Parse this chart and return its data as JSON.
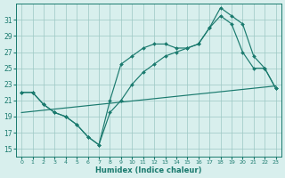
{
  "xlabel": "Humidex (Indice chaleur)",
  "xlim": [
    -0.5,
    23.5
  ],
  "ylim": [
    14,
    33
  ],
  "yticks": [
    15,
    17,
    19,
    21,
    23,
    25,
    27,
    29,
    31
  ],
  "xticks": [
    0,
    1,
    2,
    3,
    4,
    5,
    6,
    7,
    8,
    9,
    10,
    11,
    12,
    13,
    14,
    15,
    16,
    17,
    18,
    19,
    20,
    21,
    22,
    23
  ],
  "line_color": "#1a7a6e",
  "bg_color": "#d8efed",
  "grid_color": "#9cc8c4",
  "series1_x": [
    0,
    1,
    2,
    3,
    4,
    5,
    6,
    7,
    8,
    9,
    10,
    11,
    12,
    13,
    14,
    15,
    16,
    17,
    18,
    19,
    20,
    21,
    22,
    23
  ],
  "series1_y": [
    22.0,
    22.0,
    20.5,
    19.5,
    19.0,
    18.0,
    16.5,
    15.5,
    19.5,
    21.0,
    23.0,
    24.5,
    25.5,
    26.5,
    27.0,
    27.5,
    28.0,
    30.0,
    31.5,
    30.5,
    27.0,
    25.0,
    25.0,
    22.5
  ],
  "series2_x": [
    0,
    1,
    2,
    3,
    4,
    5,
    6,
    7,
    8,
    9,
    10,
    11,
    12,
    13,
    14,
    15,
    16,
    17,
    18,
    19,
    20,
    21,
    22,
    23
  ],
  "series2_y": [
    22.0,
    22.0,
    20.5,
    19.5,
    19.0,
    18.0,
    16.5,
    15.5,
    21.0,
    25.5,
    26.5,
    27.5,
    28.0,
    28.0,
    27.5,
    27.5,
    28.0,
    30.0,
    32.5,
    31.5,
    30.5,
    26.5,
    25.0,
    22.5
  ],
  "series3_x": [
    0,
    23
  ],
  "series3_y": [
    19.5,
    22.8
  ],
  "figsize": [
    3.2,
    2.0
  ],
  "dpi": 100
}
